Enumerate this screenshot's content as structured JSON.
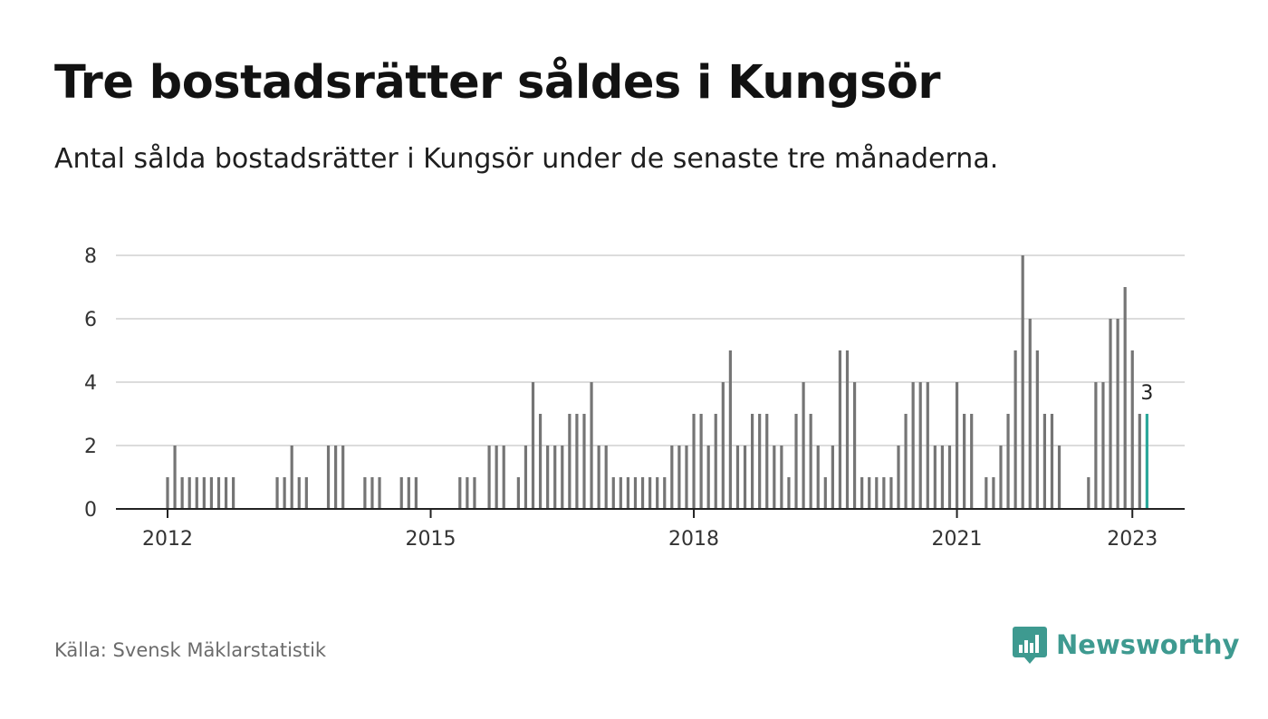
{
  "header": {
    "title": "Tre bostadsrätter såldes i Kungsör",
    "subtitle": "Antal sålda bostadsrätter i Kungsör under de senaste tre månaderna."
  },
  "footer": {
    "source": "Källa: Svensk Mäklarstatistik",
    "brand_name": "Newsworthy",
    "brand_icon": "bar-chart-speech-bubble-icon"
  },
  "colors": {
    "bar": "#757575",
    "highlight": "#2aa79a",
    "grid": "#dcdcdc",
    "axis": "#222222",
    "brand": "#3e9a90"
  },
  "chart_data": {
    "type": "bar",
    "start": "2012-01",
    "x_ticks": [
      "2012",
      "2015",
      "2018",
      "2021",
      "2023"
    ],
    "y_ticks": [
      0,
      2,
      4,
      6,
      8
    ],
    "ylim": [
      0,
      8
    ],
    "grid": true,
    "highlight_last": true,
    "last_value_label": "3",
    "values": [
      1,
      2,
      1,
      1,
      1,
      1,
      1,
      1,
      1,
      1,
      0,
      0,
      0,
      0,
      0,
      1,
      1,
      2,
      1,
      1,
      0,
      0,
      2,
      2,
      2,
      0,
      0,
      1,
      1,
      1,
      0,
      0,
      1,
      1,
      1,
      0,
      0,
      0,
      0,
      0,
      1,
      1,
      1,
      0,
      2,
      2,
      2,
      0,
      1,
      2,
      4,
      3,
      2,
      2,
      2,
      3,
      3,
      3,
      4,
      2,
      2,
      1,
      1,
      1,
      1,
      1,
      1,
      1,
      1,
      2,
      2,
      2,
      3,
      3,
      2,
      3,
      4,
      5,
      2,
      2,
      3,
      3,
      3,
      2,
      2,
      1,
      3,
      4,
      3,
      2,
      1,
      2,
      5,
      5,
      4,
      1,
      1,
      1,
      1,
      1,
      2,
      3,
      4,
      4,
      4,
      2,
      2,
      2,
      4,
      3,
      3,
      0,
      1,
      1,
      2,
      3,
      5,
      8,
      6,
      5,
      3,
      3,
      2,
      0,
      0,
      0,
      1,
      4,
      4,
      6,
      6,
      7,
      5,
      3,
      3
    ]
  }
}
